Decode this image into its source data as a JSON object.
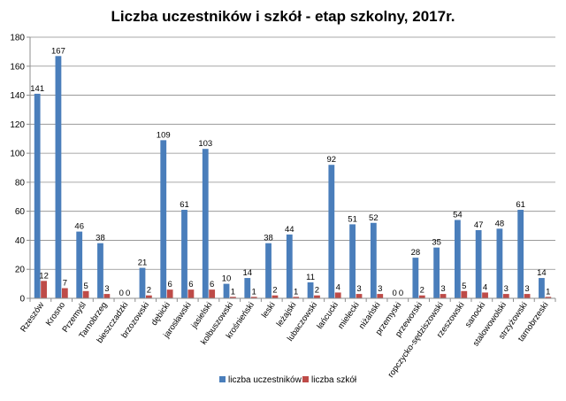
{
  "chart_data": {
    "type": "bar",
    "title": "Liczba uczestników i szkół - etap szkolny, 2017r.",
    "xlabel": "",
    "ylabel": "",
    "ylim": [
      0,
      180
    ],
    "yticks": [
      0,
      20,
      40,
      60,
      80,
      100,
      120,
      140,
      160,
      180
    ],
    "grid": true,
    "legend_position": "bottom",
    "categories": [
      "Rzeszów",
      "Krosno",
      "Przemyśl",
      "Tarnobrzeg",
      "bieszczadzki",
      "brzozowski",
      "dębicki",
      "jarosławski",
      "jasielski",
      "kolbuszowski",
      "krośnieński",
      "leski",
      "leżajski",
      "lubaczowski",
      "łańcucki",
      "mielecki",
      "niżański",
      "przemyski",
      "przeworski",
      "ropczycko-sędziszowski",
      "rzeszowski",
      "sanocki",
      "stalowowolski",
      "strzyżowski",
      "tarnobrzeski"
    ],
    "series": [
      {
        "name": "liczba uczestników",
        "color": "#4A7EBB",
        "values": [
          141,
          167,
          46,
          38,
          0,
          21,
          109,
          61,
          103,
          10,
          14,
          38,
          44,
          11,
          92,
          51,
          52,
          0,
          28,
          35,
          54,
          47,
          48,
          61,
          14
        ]
      },
      {
        "name": "liczba szkół",
        "color": "#BE4B48",
        "values": [
          12,
          7,
          5,
          3,
          0,
          2,
          6,
          6,
          6,
          1,
          1,
          2,
          1,
          2,
          4,
          3,
          3,
          0,
          2,
          3,
          5,
          4,
          3,
          3,
          1
        ]
      }
    ]
  }
}
